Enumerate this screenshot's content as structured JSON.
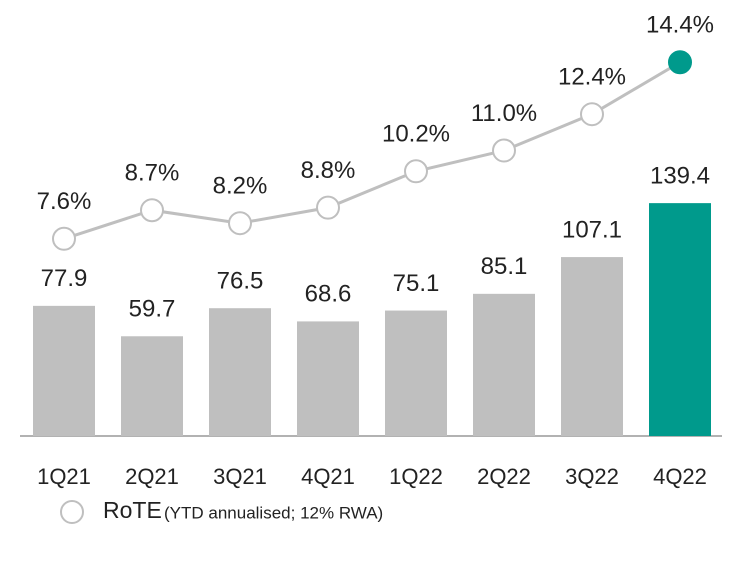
{
  "chart_data": {
    "type": "bar_line",
    "categories": [
      "1Q21",
      "2Q21",
      "3Q21",
      "4Q21",
      "1Q22",
      "2Q22",
      "3Q22",
      "4Q22"
    ],
    "bars": {
      "values": [
        77.9,
        59.7,
        76.5,
        68.6,
        75.1,
        85.1,
        107.1,
        139.4
      ],
      "colors": [
        "#bfbfbf",
        "#bfbfbf",
        "#bfbfbf",
        "#bfbfbf",
        "#bfbfbf",
        "#bfbfbf",
        "#bfbfbf",
        "#009a8c"
      ]
    },
    "series": [
      {
        "name": "RoTE",
        "axis": "y2",
        "color": "#bfbfbf",
        "marker_colors": [
          "#ffffff",
          "#ffffff",
          "#ffffff",
          "#ffffff",
          "#ffffff",
          "#ffffff",
          "#ffffff",
          "#009a8c"
        ],
        "values": [
          7.6,
          8.7,
          8.2,
          8.8,
          10.2,
          11.0,
          12.4,
          14.4
        ],
        "value_labels": [
          "7.6%",
          "8.7%",
          "8.2%",
          "8.8%",
          "10.2%",
          "11.0%",
          "12.4%",
          "14.4%"
        ]
      }
    ],
    "legend_detail": "(YTD annualised; 12% RWA)",
    "ylim": [
      0,
      261
    ],
    "y2lim": [
      0,
      16.8
    ]
  }
}
